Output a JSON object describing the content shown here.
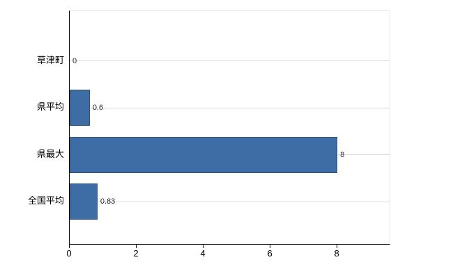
{
  "chart_data": {
    "type": "bar",
    "orientation": "horizontal",
    "title": "",
    "xlabel": "",
    "ylabel": "",
    "categories": [
      "草津町",
      "県平均",
      "県最大",
      "全国平均"
    ],
    "values": [
      0,
      0.6,
      8,
      0.83
    ],
    "value_labels": [
      "0",
      "0.6",
      "8",
      "0.83"
    ],
    "xlim": [
      0,
      9.6
    ],
    "xticks": [
      "0",
      "2",
      "4",
      "6",
      "8"
    ],
    "xtick_values": [
      0,
      2,
      4,
      6,
      8
    ],
    "grid": "horizontal lines at category centers",
    "legend": "none",
    "colors": {
      "bar_fill": "#3e6da6",
      "bar_border": "#2c5380",
      "axis_line": "#000000",
      "gridline": "#dcdcdc",
      "label_text": "#000000",
      "value_text": "#2b2b2b",
      "background": "#ffffff"
    }
  }
}
